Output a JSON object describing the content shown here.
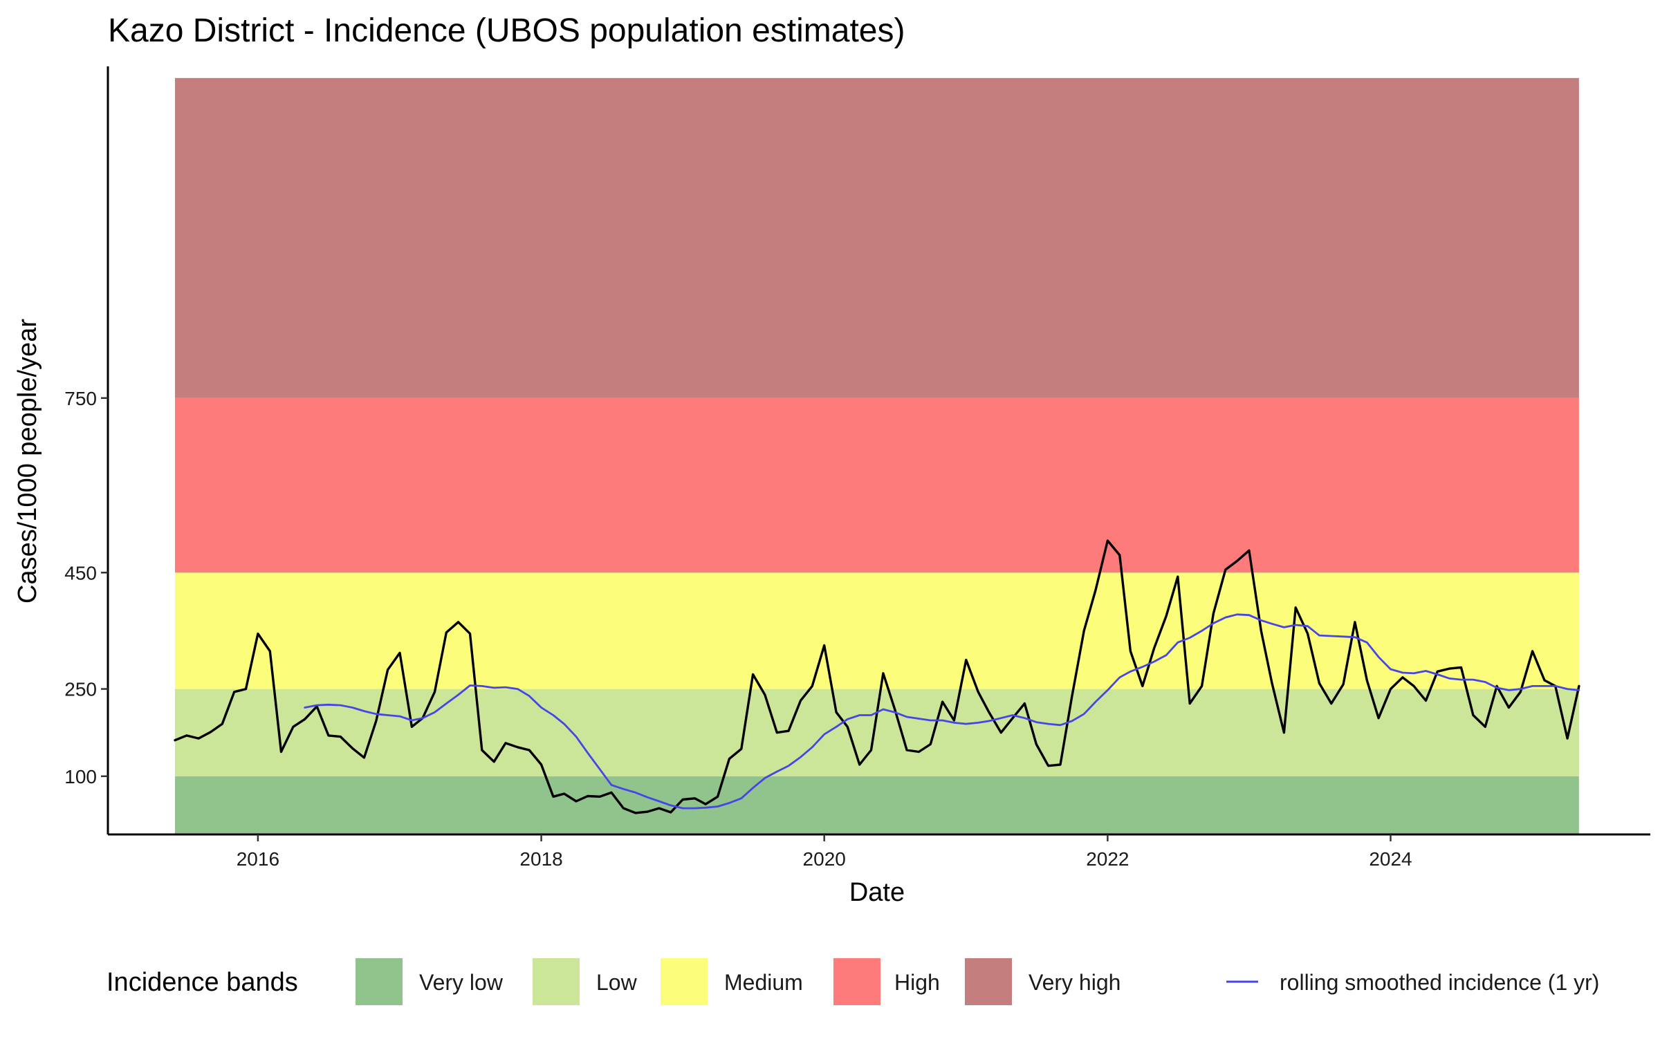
{
  "chart_data": {
    "type": "line",
    "title": "Kazo District - Incidence (UBOS population estimates)",
    "xlabel": "Date",
    "ylabel": "Cases/1000 people/year",
    "x_ticks": [
      "2016",
      "2018",
      "2020",
      "2022",
      "2024"
    ],
    "y_ticks": [
      100,
      250,
      450,
      750
    ],
    "xlim": [
      "2014-12-10",
      "2025-11-01"
    ],
    "ylim": [
      0,
      1320
    ],
    "grid": false,
    "legend_position": "bottom",
    "legend_title": "Incidence bands",
    "bands": [
      {
        "name": "Very low",
        "from": 0,
        "to": 100,
        "color": "#91c48d"
      },
      {
        "name": "Low",
        "from": 100,
        "to": 250,
        "color": "#cce699"
      },
      {
        "name": "Medium",
        "from": 250,
        "to": 450,
        "color": "#fdfd7c"
      },
      {
        "name": "High",
        "from": 450,
        "to": 750,
        "color": "#fe7b7b"
      },
      {
        "name": "Very high",
        "from": 750,
        "to": 1300,
        "color": "#c47e7e"
      }
    ],
    "band_x_range": [
      "2015-06-01",
      "2025-05-01"
    ],
    "series": [
      {
        "color": "#000000",
        "points": [
          [
            "2015-06-01",
            162
          ],
          [
            "2015-07-01",
            170
          ],
          [
            "2015-08-01",
            165
          ],
          [
            "2015-09-01",
            176
          ],
          [
            "2015-10-01",
            190
          ],
          [
            "2015-11-01",
            245
          ],
          [
            "2015-12-01",
            250
          ],
          [
            "2016-01-01",
            345
          ],
          [
            "2016-02-01",
            315
          ],
          [
            "2016-03-01",
            142
          ],
          [
            "2016-04-01",
            185
          ],
          [
            "2016-05-01",
            198
          ],
          [
            "2016-06-01",
            220
          ],
          [
            "2016-07-01",
            170
          ],
          [
            "2016-08-01",
            168
          ],
          [
            "2016-09-01",
            148
          ],
          [
            "2016-10-01",
            132
          ],
          [
            "2016-11-01",
            195
          ],
          [
            "2016-12-01",
            283
          ],
          [
            "2017-01-01",
            312
          ],
          [
            "2017-02-01",
            185
          ],
          [
            "2017-03-01",
            200
          ],
          [
            "2017-04-01",
            245
          ],
          [
            "2017-05-01",
            347
          ],
          [
            "2017-06-01",
            365
          ],
          [
            "2017-07-01",
            345
          ],
          [
            "2017-08-01",
            145
          ],
          [
            "2017-09-01",
            125
          ],
          [
            "2017-10-01",
            157
          ],
          [
            "2017-11-01",
            150
          ],
          [
            "2017-12-01",
            145
          ],
          [
            "2018-01-01",
            120
          ],
          [
            "2018-02-01",
            65
          ],
          [
            "2018-03-01",
            70
          ],
          [
            "2018-04-01",
            57
          ],
          [
            "2018-05-01",
            66
          ],
          [
            "2018-06-01",
            65
          ],
          [
            "2018-07-01",
            72
          ],
          [
            "2018-08-01",
            45
          ],
          [
            "2018-09-01",
            37
          ],
          [
            "2018-10-01",
            39
          ],
          [
            "2018-11-01",
            45
          ],
          [
            "2018-12-01",
            38
          ],
          [
            "2019-01-01",
            60
          ],
          [
            "2019-02-01",
            62
          ],
          [
            "2019-03-01",
            52
          ],
          [
            "2019-04-01",
            65
          ],
          [
            "2019-05-01",
            130
          ],
          [
            "2019-06-01",
            147
          ],
          [
            "2019-07-01",
            275
          ],
          [
            "2019-08-01",
            240
          ],
          [
            "2019-09-01",
            175
          ],
          [
            "2019-10-01",
            178
          ],
          [
            "2019-11-01",
            230
          ],
          [
            "2019-12-01",
            255
          ],
          [
            "2020-01-01",
            325
          ],
          [
            "2020-02-01",
            210
          ],
          [
            "2020-03-01",
            185
          ],
          [
            "2020-04-01",
            120
          ],
          [
            "2020-05-01",
            145
          ],
          [
            "2020-06-01",
            277
          ],
          [
            "2020-07-01",
            215
          ],
          [
            "2020-08-01",
            145
          ],
          [
            "2020-09-01",
            142
          ],
          [
            "2020-10-01",
            155
          ],
          [
            "2020-11-01",
            228
          ],
          [
            "2020-12-01",
            196
          ],
          [
            "2021-01-01",
            300
          ],
          [
            "2021-02-01",
            245
          ],
          [
            "2021-03-01",
            210
          ],
          [
            "2021-04-01",
            175
          ],
          [
            "2021-05-01",
            200
          ],
          [
            "2021-06-01",
            225
          ],
          [
            "2021-07-01",
            155
          ],
          [
            "2021-08-01",
            118
          ],
          [
            "2021-09-01",
            120
          ],
          [
            "2021-10-01",
            237
          ],
          [
            "2021-11-01",
            350
          ],
          [
            "2021-12-01",
            420
          ],
          [
            "2022-01-01",
            505
          ],
          [
            "2022-02-01",
            480
          ],
          [
            "2022-03-01",
            315
          ],
          [
            "2022-04-01",
            255
          ],
          [
            "2022-05-01",
            320
          ],
          [
            "2022-06-01",
            375
          ],
          [
            "2022-07-01",
            443
          ],
          [
            "2022-08-01",
            225
          ],
          [
            "2022-09-01",
            255
          ],
          [
            "2022-10-01",
            380
          ],
          [
            "2022-11-01",
            455
          ],
          [
            "2022-12-01",
            470
          ],
          [
            "2023-01-01",
            488
          ],
          [
            "2023-02-01",
            350
          ],
          [
            "2023-03-01",
            260
          ],
          [
            "2023-04-01",
            175
          ],
          [
            "2023-05-01",
            390
          ],
          [
            "2023-06-01",
            345
          ],
          [
            "2023-07-01",
            260
          ],
          [
            "2023-08-01",
            225
          ],
          [
            "2023-09-01",
            258
          ],
          [
            "2023-10-01",
            365
          ],
          [
            "2023-11-01",
            265
          ],
          [
            "2023-12-01",
            200
          ],
          [
            "2024-01-01",
            250
          ],
          [
            "2024-02-01",
            270
          ],
          [
            "2024-03-01",
            255
          ],
          [
            "2024-04-01",
            230
          ],
          [
            "2024-05-01",
            280
          ],
          [
            "2024-06-01",
            285
          ],
          [
            "2024-07-01",
            287
          ],
          [
            "2024-08-01",
            205
          ],
          [
            "2024-09-01",
            185
          ],
          [
            "2024-10-01",
            255
          ],
          [
            "2024-11-01",
            218
          ],
          [
            "2024-12-01",
            245
          ],
          [
            "2025-01-01",
            315
          ],
          [
            "2025-02-01",
            265
          ],
          [
            "2025-03-01",
            255
          ],
          [
            "2025-04-01",
            165
          ],
          [
            "2025-05-01",
            255
          ]
        ]
      },
      {
        "name": "rolling smoothed incidence (1 yr)",
        "color": "#4646e6",
        "points": [
          [
            "2016-05-01",
            218
          ],
          [
            "2016-06-01",
            222
          ],
          [
            "2016-07-01",
            223
          ],
          [
            "2016-08-01",
            222
          ],
          [
            "2016-09-01",
            218
          ],
          [
            "2016-10-01",
            212
          ],
          [
            "2016-11-01",
            207
          ],
          [
            "2016-12-01",
            205
          ],
          [
            "2017-01-01",
            203
          ],
          [
            "2017-02-01",
            196
          ],
          [
            "2017-03-01",
            200
          ],
          [
            "2017-04-01",
            210
          ],
          [
            "2017-05-01",
            225
          ],
          [
            "2017-06-01",
            240
          ],
          [
            "2017-07-01",
            256
          ],
          [
            "2017-08-01",
            255
          ],
          [
            "2017-09-01",
            252
          ],
          [
            "2017-10-01",
            253
          ],
          [
            "2017-11-01",
            250
          ],
          [
            "2017-12-01",
            238
          ],
          [
            "2018-01-01",
            218
          ],
          [
            "2018-02-01",
            205
          ],
          [
            "2018-03-01",
            190
          ],
          [
            "2018-04-01",
            168
          ],
          [
            "2018-05-01",
            140
          ],
          [
            "2018-06-01",
            112
          ],
          [
            "2018-07-01",
            85
          ],
          [
            "2018-08-01",
            78
          ],
          [
            "2018-09-01",
            72
          ],
          [
            "2018-10-01",
            64
          ],
          [
            "2018-11-01",
            57
          ],
          [
            "2018-12-01",
            50
          ],
          [
            "2019-01-01",
            45
          ],
          [
            "2019-02-01",
            45
          ],
          [
            "2019-03-01",
            46
          ],
          [
            "2019-04-01",
            48
          ],
          [
            "2019-05-01",
            54
          ],
          [
            "2019-06-01",
            62
          ],
          [
            "2019-07-01",
            80
          ],
          [
            "2019-08-01",
            97
          ],
          [
            "2019-09-01",
            108
          ],
          [
            "2019-10-01",
            118
          ],
          [
            "2019-11-01",
            133
          ],
          [
            "2019-12-01",
            150
          ],
          [
            "2020-01-01",
            172
          ],
          [
            "2020-02-01",
            185
          ],
          [
            "2020-03-01",
            198
          ],
          [
            "2020-04-01",
            205
          ],
          [
            "2020-05-01",
            205
          ],
          [
            "2020-06-01",
            215
          ],
          [
            "2020-07-01",
            210
          ],
          [
            "2020-08-01",
            202
          ],
          [
            "2020-09-01",
            199
          ],
          [
            "2020-10-01",
            196
          ],
          [
            "2020-11-01",
            196
          ],
          [
            "2020-12-01",
            192
          ],
          [
            "2021-01-01",
            190
          ],
          [
            "2021-02-01",
            192
          ],
          [
            "2021-03-01",
            195
          ],
          [
            "2021-04-01",
            200
          ],
          [
            "2021-05-01",
            205
          ],
          [
            "2021-06-01",
            200
          ],
          [
            "2021-07-01",
            193
          ],
          [
            "2021-08-01",
            190
          ],
          [
            "2021-09-01",
            188
          ],
          [
            "2021-10-01",
            195
          ],
          [
            "2021-11-01",
            207
          ],
          [
            "2021-12-01",
            228
          ],
          [
            "2022-01-01",
            248
          ],
          [
            "2022-02-01",
            270
          ],
          [
            "2022-03-01",
            280
          ],
          [
            "2022-04-01",
            288
          ],
          [
            "2022-05-01",
            297
          ],
          [
            "2022-06-01",
            308
          ],
          [
            "2022-07-01",
            330
          ],
          [
            "2022-08-01",
            338
          ],
          [
            "2022-09-01",
            350
          ],
          [
            "2022-10-01",
            363
          ],
          [
            "2022-11-01",
            373
          ],
          [
            "2022-12-01",
            378
          ],
          [
            "2023-01-01",
            377
          ],
          [
            "2023-02-01",
            368
          ],
          [
            "2023-03-01",
            362
          ],
          [
            "2023-04-01",
            356
          ],
          [
            "2023-05-01",
            360
          ],
          [
            "2023-06-01",
            358
          ],
          [
            "2023-07-01",
            342
          ],
          [
            "2023-08-01",
            341
          ],
          [
            "2023-09-01",
            340
          ],
          [
            "2023-10-01",
            339
          ],
          [
            "2023-11-01",
            330
          ],
          [
            "2023-12-01",
            305
          ],
          [
            "2024-01-01",
            284
          ],
          [
            "2024-02-01",
            278
          ],
          [
            "2024-03-01",
            277
          ],
          [
            "2024-04-01",
            281
          ],
          [
            "2024-05-01",
            275
          ],
          [
            "2024-06-01",
            268
          ],
          [
            "2024-07-01",
            266
          ],
          [
            "2024-08-01",
            266
          ],
          [
            "2024-09-01",
            262
          ],
          [
            "2024-10-01",
            252
          ],
          [
            "2024-11-01",
            248
          ],
          [
            "2024-12-01",
            250
          ],
          [
            "2025-01-01",
            255
          ],
          [
            "2025-02-01",
            255
          ],
          [
            "2025-03-01",
            255
          ],
          [
            "2025-04-01",
            250
          ],
          [
            "2025-05-01",
            248
          ]
        ]
      }
    ]
  }
}
